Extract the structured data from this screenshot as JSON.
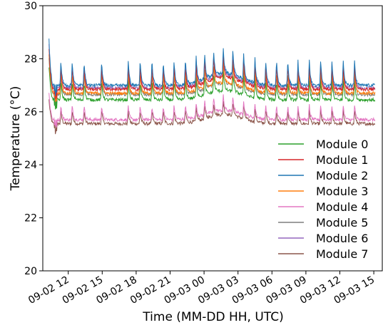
{
  "chart_data": {
    "type": "line",
    "title": "",
    "xlabel": "Time (MM-DD HH, UTC)",
    "ylabel": "Temperature (°C)",
    "xlim": [
      "09-02 09:45",
      "09-03 15:45"
    ],
    "ylim": [
      20,
      30
    ],
    "yticks": [
      20,
      22,
      24,
      26,
      28,
      30
    ],
    "xticks": [
      "09-02 12",
      "09-02 15",
      "09-02 18",
      "09-02 21",
      "09-03 00",
      "09-03 03",
      "09-03 06",
      "09-03 09",
      "09-03 12",
      "09-03 15"
    ],
    "xtick_hours": [
      12,
      15,
      18,
      21,
      24,
      27,
      30,
      33,
      36,
      39
    ],
    "x_range_hours": [
      9.75,
      39.75
    ],
    "x_start_hours": 10.3,
    "x_end_hours": 39.1,
    "grid": false,
    "legend": "right",
    "spike_hours": [
      10.3,
      11.35,
      12.35,
      13.4,
      14.95,
      17.3,
      18.35,
      19.4,
      20.4,
      21.35,
      22.35,
      23.3,
      24.05,
      24.85,
      25.7,
      26.55,
      27.5,
      28.5,
      29.45,
      30.4,
      31.4,
      32.3,
      33.3,
      34.3,
      35.3,
      36.3,
      37.3
    ],
    "series": [
      {
        "name": "Module 0",
        "color": "#2ca02c",
        "base": 26.45,
        "bump": 0.35,
        "spike": 0.7,
        "dip": 25.8
      },
      {
        "name": "Module 1",
        "color": "#d62728",
        "base": 26.85,
        "bump": 0.45,
        "spike": 0.85,
        "dip": 26.2
      },
      {
        "name": "Module 2",
        "color": "#1f77b4",
        "base": 27.0,
        "bump": 0.45,
        "spike": 0.95,
        "dip": 26.4
      },
      {
        "name": "Module 3",
        "color": "#ff7f0e",
        "base": 26.7,
        "bump": 0.4,
        "spike": 0.8,
        "dip": 26.1
      },
      {
        "name": "Module 4",
        "color": "#e377c2",
        "base": 25.7,
        "bump": 0.35,
        "spike": 0.55,
        "dip": 25.2
      },
      {
        "name": "Module 5",
        "color": "#7f7f7f",
        "base": 26.65,
        "bump": 0.4,
        "spike": 0.75,
        "dip": 26.0
      },
      {
        "name": "Module 6",
        "color": "#9467bd",
        "base": 26.9,
        "bump": 0.45,
        "spike": 0.9,
        "dip": 26.3
      },
      {
        "name": "Module 7",
        "color": "#8c564b",
        "base": 25.55,
        "bump": 0.35,
        "spike": 0.5,
        "dip": 24.9
      }
    ]
  }
}
